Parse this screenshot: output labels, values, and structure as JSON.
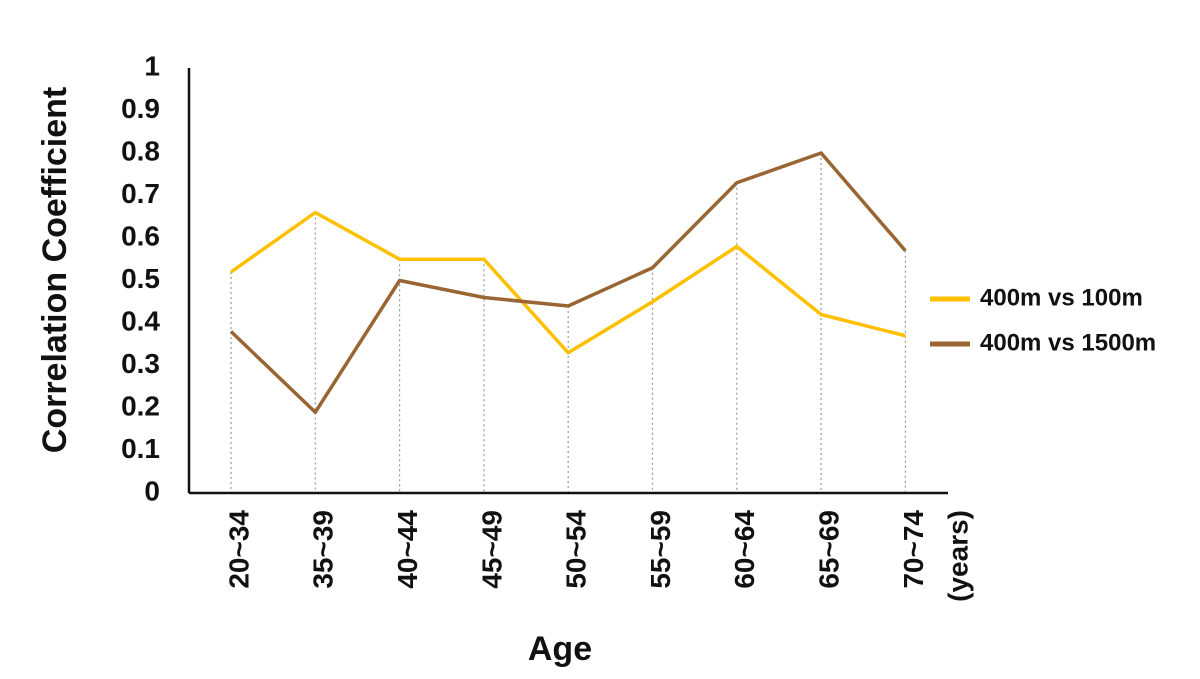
{
  "chart_data": {
    "type": "line",
    "categories": [
      "20~34",
      "35~39",
      "40~44",
      "45~49",
      "50~54",
      "55~59",
      "60~64",
      "65~69",
      "70~74"
    ],
    "x_unit_label": "(years)",
    "series": [
      {
        "name": "400m vs 100m",
        "color": "#ffc000",
        "values": [
          0.52,
          0.66,
          0.55,
          0.55,
          0.33,
          0.45,
          0.58,
          0.42,
          0.37
        ]
      },
      {
        "name": "400m vs 1500m",
        "color": "#996633",
        "values": [
          0.38,
          0.19,
          0.5,
          0.46,
          0.44,
          0.53,
          0.73,
          0.8,
          0.57
        ]
      }
    ],
    "xlabel": "Age",
    "ylabel": "Correlation Coefficient",
    "ylim": [
      0,
      1
    ],
    "yticks": [
      "0",
      "0.1",
      "0.2",
      "0.3",
      "0.4",
      "0.5",
      "0.6",
      "0.7",
      "0.8",
      "0.9",
      "1"
    ],
    "grid": "vertical dotted drop lines at categories",
    "legend_position": "right"
  }
}
